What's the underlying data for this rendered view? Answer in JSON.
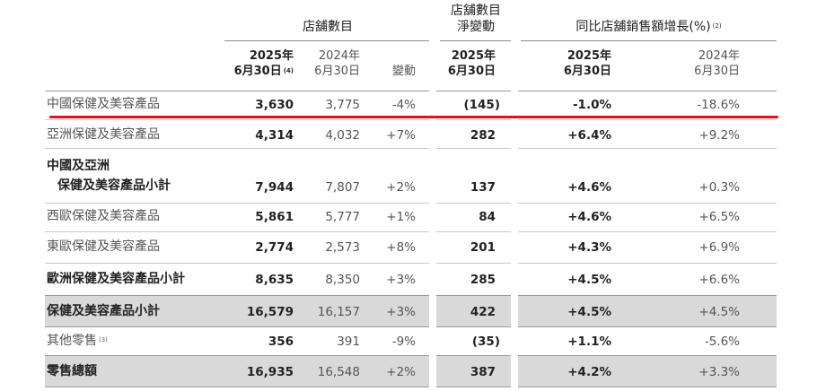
{
  "header": {
    "group_store_count": "店舖數目",
    "group_net_change_line1": "店舖數目",
    "group_net_change_line2": "淨變動",
    "group_growth": "同比店舖銷售額增長(%)",
    "group_growth_sup": "(2)",
    "col_2025_a_line1": "2025年",
    "col_2025_a_line2": "6月30日",
    "col_2025_a_sup": "(4)",
    "col_2024_a_line1": "2024年",
    "col_2024_a_line2": "6月30日",
    "col_change": "變動",
    "col_net_line1": "2025年",
    "col_net_line2": "6月30日",
    "col_2025_b_line1": "2025年",
    "col_2025_b_line2": "6月30日",
    "col_2024_b_line1": "2024年",
    "col_2024_b_line2": "6月30日"
  },
  "rows": [
    {
      "label": "中國保健及美容產品",
      "c2025": "3,630",
      "c2024": "3,775",
      "chg": "-4%",
      "net": "(145)",
      "g2025": "-1.0%",
      "g2024": "-18.6%"
    },
    {
      "label": "亞洲保健及美容產品",
      "c2025": "4,314",
      "c2024": "4,032",
      "chg": "+7%",
      "net": "282",
      "g2025": "+6.4%",
      "g2024": "+9.2%"
    },
    {
      "label1": "中國及亞洲",
      "label2": "保健及美容產品小計",
      "c2025": "7,944",
      "c2024": "7,807",
      "chg": "+2%",
      "net": "137",
      "g2025": "+4.6%",
      "g2024": "+0.3%"
    },
    {
      "label": "西歐保健及美容產品",
      "c2025": "5,861",
      "c2024": "5,777",
      "chg": "+1%",
      "net": "84",
      "g2025": "+4.6%",
      "g2024": "+6.5%"
    },
    {
      "label": "東歐保健及美容產品",
      "c2025": "2,774",
      "c2024": "2,573",
      "chg": "+8%",
      "net": "201",
      "g2025": "+4.3%",
      "g2024": "+6.9%"
    },
    {
      "label": "歐洲保健及美容產品小計",
      "c2025": "8,635",
      "c2024": "8,350",
      "chg": "+3%",
      "net": "285",
      "g2025": "+4.5%",
      "g2024": "+6.6%"
    },
    {
      "label": "保健及美容產品小計",
      "c2025": "16,579",
      "c2024": "16,157",
      "chg": "+3%",
      "net": "422",
      "g2025": "+4.5%",
      "g2024": "+4.5%"
    },
    {
      "label": "其他零售",
      "label_sup": "(3)",
      "c2025": "356",
      "c2024": "391",
      "chg": "-9%",
      "net": "(35)",
      "g2025": "+1.1%",
      "g2024": "-5.6%"
    },
    {
      "label": "零售總額",
      "c2025": "16,935",
      "c2024": "16,548",
      "chg": "+2%",
      "net": "387",
      "g2025": "+4.2%",
      "g2024": "+3.3%"
    }
  ],
  "colors": {
    "highlight_underline": "#e0121b",
    "subtotal_shade": "#d9d9d9",
    "rule": "#8c8c8c"
  }
}
